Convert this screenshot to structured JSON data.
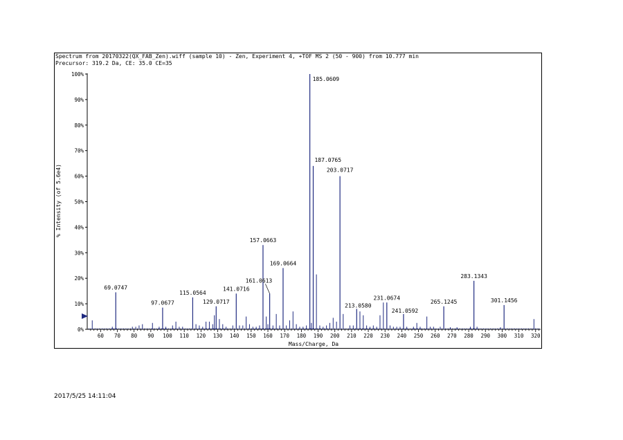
{
  "header": {
    "line1": "Spectrum from 20170322(QX_FAB_Zen).wiff (sample 10) - Zen, Experiment 4, +TOF MS 2 (50 - 900) from 10.777 min",
    "line2": "Precursor: 319.2 Da, CE: 35.0 CE=35"
  },
  "footer": {
    "timestamp": "2017/5/25 14:11:04"
  },
  "colors": {
    "peak": "#1f2a80",
    "axis": "#000000",
    "marker": "#1f2a80"
  },
  "chart_data": {
    "type": "bar",
    "xlabel": "Mass/Charge, Da",
    "ylabel": "% Intensity (of 5.6e4)",
    "xlim": [
      52,
      323
    ],
    "ylim": [
      0,
      100
    ],
    "x_ticks": [
      60,
      70,
      80,
      90,
      100,
      110,
      120,
      130,
      140,
      150,
      160,
      170,
      180,
      190,
      200,
      210,
      220,
      230,
      240,
      250,
      260,
      270,
      280,
      290,
      300,
      310,
      320
    ],
    "y_ticks": [
      0,
      10,
      20,
      30,
      40,
      50,
      60,
      70,
      80,
      90,
      100
    ],
    "y_tick_labels": [
      "0%",
      "10%",
      "20%",
      "30%",
      "40%",
      "50%",
      "60%",
      "70%",
      "80%",
      "90%",
      "100%"
    ],
    "labeled_peaks": [
      {
        "label": "69.0747",
        "mz": 69.07,
        "intensity": 14.5
      },
      {
        "label": "97.0677",
        "mz": 97.07,
        "intensity": 8.5
      },
      {
        "label": "115.0564",
        "mz": 115.06,
        "intensity": 12.5
      },
      {
        "label": "129.0717",
        "mz": 129.07,
        "intensity": 9.0
      },
      {
        "label": "141.0716",
        "mz": 141.07,
        "intensity": 14.0
      },
      {
        "label": "157.0663",
        "mz": 157.07,
        "intensity": 33.0
      },
      {
        "label": "161.0613",
        "mz": 161.06,
        "intensity": 14.0
      },
      {
        "label": "169.0664",
        "mz": 169.07,
        "intensity": 24.0
      },
      {
        "label": "185.0609",
        "mz": 185.06,
        "intensity": 100.0
      },
      {
        "label": "187.0765",
        "mz": 187.08,
        "intensity": 64.0
      },
      {
        "label": "203.0717",
        "mz": 203.07,
        "intensity": 60.0
      },
      {
        "label": "213.0580",
        "mz": 213.06,
        "intensity": 8.0
      },
      {
        "label": "231.0674",
        "mz": 231.07,
        "intensity": 10.5
      },
      {
        "label": "241.0592",
        "mz": 241.06,
        "intensity": 6.0
      },
      {
        "label": "265.1245",
        "mz": 265.12,
        "intensity": 9.0
      },
      {
        "label": "283.1343",
        "mz": 283.13,
        "intensity": 19.0
      },
      {
        "label": "301.1456",
        "mz": 301.15,
        "intensity": 9.5
      }
    ],
    "unlabeled_peaks": [
      {
        "mz": 55.0,
        "intensity": 3.5
      },
      {
        "mz": 67.0,
        "intensity": 1.0
      },
      {
        "mz": 79.0,
        "intensity": 1.0
      },
      {
        "mz": 81.0,
        "intensity": 1.0
      },
      {
        "mz": 83.0,
        "intensity": 1.5
      },
      {
        "mz": 85.0,
        "intensity": 2.0
      },
      {
        "mz": 91.0,
        "intensity": 2.5
      },
      {
        "mz": 95.0,
        "intensity": 1.0
      },
      {
        "mz": 99.0,
        "intensity": 1.0
      },
      {
        "mz": 103.0,
        "intensity": 1.5
      },
      {
        "mz": 105.0,
        "intensity": 3.0
      },
      {
        "mz": 107.0,
        "intensity": 1.0
      },
      {
        "mz": 109.0,
        "intensity": 1.0
      },
      {
        "mz": 117.0,
        "intensity": 2.0
      },
      {
        "mz": 119.0,
        "intensity": 1.5
      },
      {
        "mz": 121.0,
        "intensity": 1.0
      },
      {
        "mz": 123.0,
        "intensity": 3.0
      },
      {
        "mz": 125.0,
        "intensity": 3.0
      },
      {
        "mz": 127.0,
        "intensity": 2.0
      },
      {
        "mz": 128.0,
        "intensity": 5.5
      },
      {
        "mz": 131.0,
        "intensity": 4.0
      },
      {
        "mz": 133.0,
        "intensity": 2.0
      },
      {
        "mz": 135.0,
        "intensity": 1.0
      },
      {
        "mz": 139.0,
        "intensity": 1.5
      },
      {
        "mz": 143.0,
        "intensity": 1.5
      },
      {
        "mz": 145.0,
        "intensity": 1.5
      },
      {
        "mz": 147.0,
        "intensity": 5.0
      },
      {
        "mz": 149.0,
        "intensity": 2.0
      },
      {
        "mz": 151.0,
        "intensity": 1.0
      },
      {
        "mz": 153.0,
        "intensity": 1.0
      },
      {
        "mz": 155.0,
        "intensity": 1.5
      },
      {
        "mz": 159.0,
        "intensity": 5.0
      },
      {
        "mz": 160.0,
        "intensity": 2.0
      },
      {
        "mz": 163.0,
        "intensity": 1.5
      },
      {
        "mz": 165.0,
        "intensity": 6.0
      },
      {
        "mz": 167.0,
        "intensity": 1.5
      },
      {
        "mz": 171.0,
        "intensity": 1.5
      },
      {
        "mz": 173.0,
        "intensity": 3.5
      },
      {
        "mz": 175.0,
        "intensity": 7.0
      },
      {
        "mz": 177.0,
        "intensity": 2.0
      },
      {
        "mz": 179.0,
        "intensity": 1.0
      },
      {
        "mz": 181.0,
        "intensity": 1.0
      },
      {
        "mz": 183.0,
        "intensity": 1.5
      },
      {
        "mz": 186.0,
        "intensity": 2.5
      },
      {
        "mz": 189.0,
        "intensity": 21.5
      },
      {
        "mz": 191.0,
        "intensity": 1.5
      },
      {
        "mz": 193.0,
        "intensity": 1.0
      },
      {
        "mz": 195.0,
        "intensity": 1.5
      },
      {
        "mz": 197.0,
        "intensity": 2.5
      },
      {
        "mz": 199.0,
        "intensity": 4.5
      },
      {
        "mz": 201.0,
        "intensity": 3.0
      },
      {
        "mz": 205.0,
        "intensity": 6.0
      },
      {
        "mz": 209.0,
        "intensity": 1.5
      },
      {
        "mz": 211.0,
        "intensity": 1.5
      },
      {
        "mz": 215.0,
        "intensity": 7.0
      },
      {
        "mz": 217.0,
        "intensity": 5.5
      },
      {
        "mz": 219.0,
        "intensity": 1.5
      },
      {
        "mz": 221.0,
        "intensity": 1.0
      },
      {
        "mz": 223.0,
        "intensity": 1.5
      },
      {
        "mz": 225.0,
        "intensity": 1.0
      },
      {
        "mz": 227.0,
        "intensity": 5.5
      },
      {
        "mz": 229.0,
        "intensity": 10.5
      },
      {
        "mz": 233.0,
        "intensity": 1.5
      },
      {
        "mz": 235.0,
        "intensity": 1.0
      },
      {
        "mz": 237.0,
        "intensity": 1.0
      },
      {
        "mz": 239.0,
        "intensity": 1.0
      },
      {
        "mz": 243.0,
        "intensity": 1.0
      },
      {
        "mz": 247.0,
        "intensity": 1.0
      },
      {
        "mz": 249.0,
        "intensity": 2.5
      },
      {
        "mz": 251.0,
        "intensity": 1.0
      },
      {
        "mz": 255.0,
        "intensity": 5.0
      },
      {
        "mz": 257.0,
        "intensity": 1.0
      },
      {
        "mz": 259.0,
        "intensity": 1.0
      },
      {
        "mz": 263.0,
        "intensity": 1.0
      },
      {
        "mz": 269.0,
        "intensity": 0.8
      },
      {
        "mz": 273.0,
        "intensity": 0.8
      },
      {
        "mz": 281.0,
        "intensity": 1.0
      },
      {
        "mz": 285.0,
        "intensity": 1.0
      },
      {
        "mz": 299.0,
        "intensity": 0.8
      },
      {
        "mz": 319.0,
        "intensity": 4.0
      }
    ],
    "grid": false,
    "legend": "none"
  }
}
